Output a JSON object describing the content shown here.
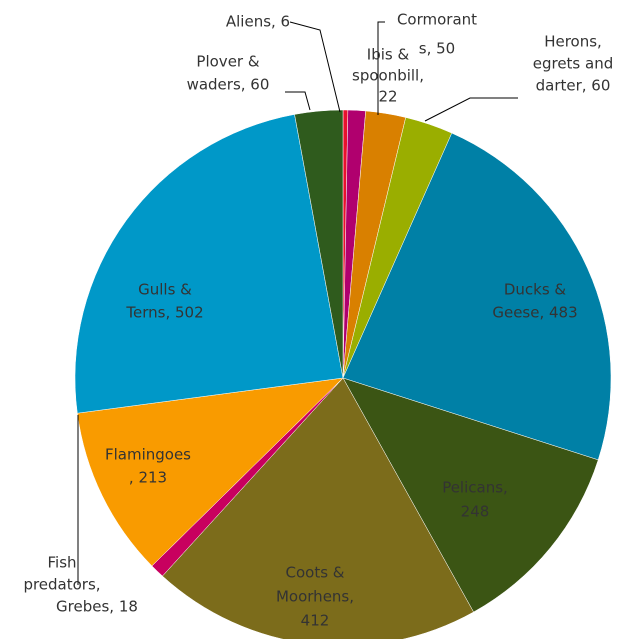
{
  "chart_data": {
    "type": "pie",
    "values": [
      6,
      22,
      50,
      60,
      483,
      248,
      412,
      18,
      213,
      502,
      60
    ],
    "value_labels": [
      [
        "Aliens, 6"
      ],
      [
        "Ibis &",
        "spoonbill,",
        "22"
      ],
      [
        "Cormorant",
        "s, 50"
      ],
      [
        "Herons,",
        "egrets and",
        "darter, 60"
      ],
      [
        "Ducks &",
        "Geese, 483"
      ],
      [
        "Pelicans,",
        "248"
      ],
      [
        "Coots &",
        "Moorhens,",
        "412"
      ],
      [
        "Fish",
        "predators,",
        "Grebes, 18"
      ],
      [
        "Flamingoes",
        ", 213"
      ],
      [
        "Gulls &",
        "Terns, 502"
      ],
      [
        "Plover &",
        "waders, 60"
      ]
    ],
    "colors": [
      "#e8112d",
      "#b0006e",
      "#d98000",
      "#9aae00",
      "#0080a6",
      "#3b5514",
      "#7c6c1b",
      "#c8005f",
      "#f99b00",
      "#0098c8",
      "#2f5b1d"
    ]
  }
}
